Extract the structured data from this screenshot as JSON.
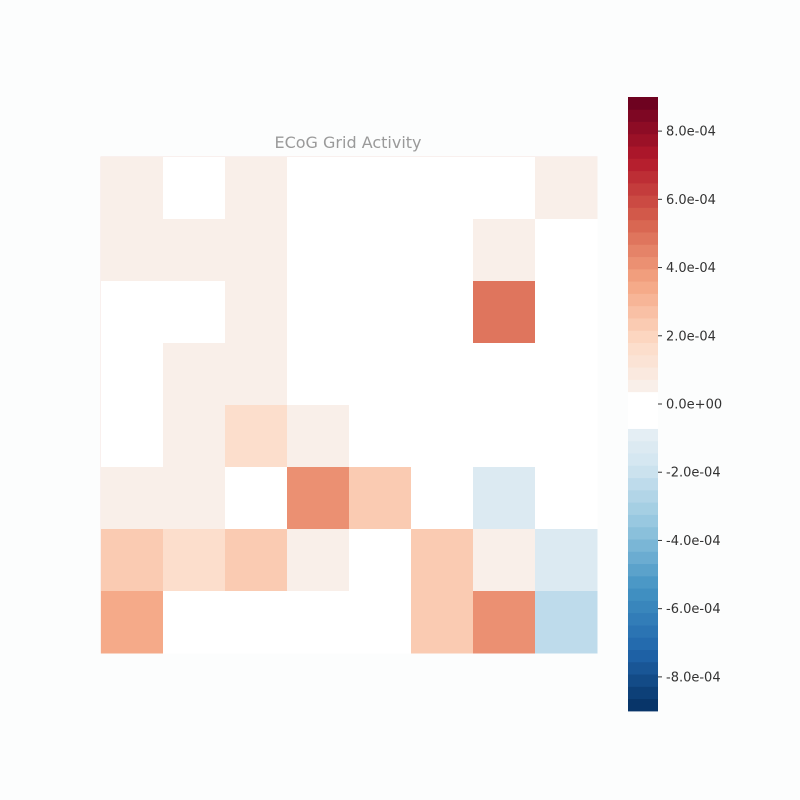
{
  "chart_data": {
    "type": "heatmap",
    "title": "ECoG Grid Activity",
    "rows": 8,
    "cols": 8,
    "values": [
      [
        4e-05,
        0.0,
        4e-05,
        0.0,
        0.0,
        0.0,
        0.0,
        4e-05
      ],
      [
        4e-05,
        4e-05,
        4e-05,
        0.0,
        0.0,
        0.0,
        4e-05,
        0.0
      ],
      [
        0.0,
        0.0,
        4e-05,
        0.0,
        0.0,
        0.0,
        0.00047,
        0.0
      ],
      [
        0.0,
        4e-05,
        4e-05,
        0.0,
        0.0,
        0.0,
        0.0,
        0.0
      ],
      [
        0.0,
        4e-05,
        0.00016,
        4e-05,
        0.0,
        0.0,
        0.0,
        0.0
      ],
      [
        4e-05,
        4e-05,
        0.0,
        0.00043,
        0.00025,
        0.0,
        -0.00013,
        0.0
      ],
      [
        0.00025,
        0.00016,
        0.00025,
        4e-05,
        0.0,
        0.00025,
        4e-05,
        -0.00013
      ],
      [
        0.00033,
        0.0,
        0.0,
        0.0,
        0.0,
        0.00025,
        0.00043,
        -0.00025
      ]
    ],
    "colorbar": {
      "min": -0.0009,
      "max": 0.0009,
      "colormap": "RdBu_r",
      "levels": 50,
      "ticks": [
        0.0008,
        0.0006,
        0.0004,
        0.0002,
        0.0,
        -0.0002,
        -0.0004,
        -0.0006,
        -0.0008
      ],
      "tick_labels": [
        "8.0e-04",
        "6.0e-04",
        "4.0e-04",
        "2.0e-04",
        "0.0e+00",
        "-2.0e-04",
        "-4.0e-04",
        "-6.0e-04",
        "-8.0e-04"
      ]
    },
    "colormap_stops": [
      "#053061",
      "#2166ac",
      "#4393c3",
      "#92c5de",
      "#d1e5f0",
      "#f7f7f7",
      "#fddbc7",
      "#f4a582",
      "#d6604d",
      "#b2182b",
      "#67001f"
    ],
    "white_band": [
      -6e-05,
      2e-05
    ],
    "grid": false,
    "legend": "colorbar-right"
  }
}
